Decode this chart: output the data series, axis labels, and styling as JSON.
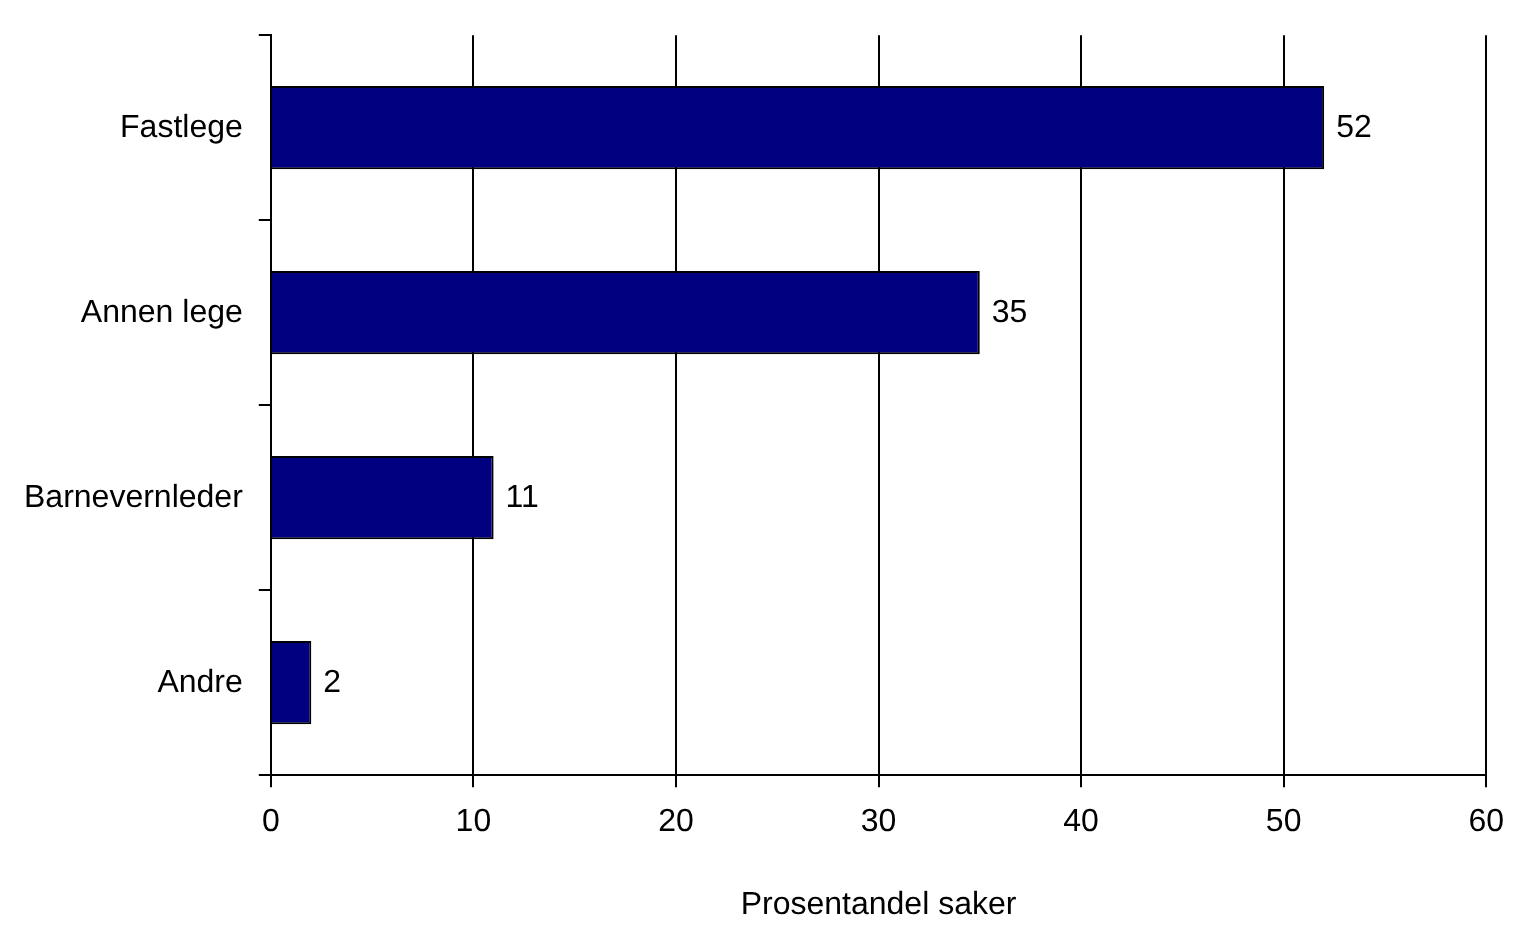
{
  "chart_data": {
    "type": "bar",
    "orientation": "horizontal",
    "xlabel": "Prosentandel saker",
    "categories": [
      "Fastlege",
      "Annen lege",
      "Barnevernleder",
      "Andre"
    ],
    "values": [
      52,
      35,
      11,
      2
    ],
    "color": "#000080",
    "xlim": [
      0,
      60
    ],
    "xticks": [
      0,
      10,
      20,
      30,
      40,
      50,
      60
    ],
    "grid": "x",
    "data_labels": true,
    "legend": false
  }
}
